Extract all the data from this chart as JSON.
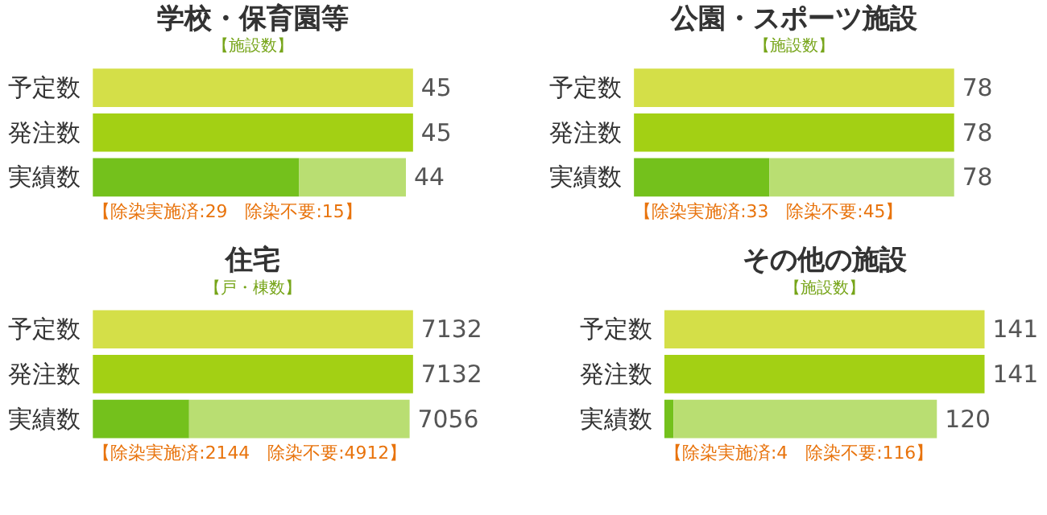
{
  "chart_data": [
    {
      "type": "bar",
      "orientation": "horizontal",
      "stacked": true,
      "title": "学校・保育園等",
      "subtitle": "【施設数】",
      "categories": [
        "予定数",
        "発注数",
        "実績数"
      ],
      "tick_labels": "y",
      "series": [
        {
          "colors": [
            "#d4df48",
            "#a3d014",
            "#74c11c"
          ],
          "values": [
            45,
            45,
            29
          ],
          "value_labels": [
            "45",
            "45",
            null
          ]
        },
        {
          "color": "#b9de72",
          "values": [
            null,
            null,
            15
          ]
        }
      ],
      "totals": [
        null,
        null,
        "44"
      ],
      "annotations": [
        "【除染実施済:29　除染不要:15】"
      ]
    },
    {
      "type": "bar",
      "orientation": "horizontal",
      "stacked": true,
      "title": "公園・スポーツ施設",
      "subtitle": "【施設数】",
      "categories": [
        "予定数",
        "発注数",
        "実績数"
      ],
      "tick_labels": "y",
      "series": [
        {
          "colors": [
            "#d4df48",
            "#a3d014",
            "#74c11c"
          ],
          "values": [
            78,
            78,
            33
          ],
          "value_labels": [
            "78",
            "78",
            null
          ]
        },
        {
          "color": "#b9de72",
          "values": [
            null,
            null,
            45
          ]
        }
      ],
      "totals": [
        null,
        null,
        "78"
      ],
      "annotations": [
        "【除染実施済:33　除染不要:45】"
      ]
    },
    {
      "type": "bar",
      "orientation": "horizontal",
      "stacked": true,
      "title": "住宅",
      "subtitle": "【戸・棟数】",
      "categories": [
        "予定数",
        "発注数",
        "実績数"
      ],
      "tick_labels": "y",
      "series": [
        {
          "colors": [
            "#d4df48",
            "#a3d014",
            "#74c11c"
          ],
          "values": [
            7132,
            7132,
            2144
          ],
          "value_labels": [
            "7132",
            "7132",
            null
          ]
        },
        {
          "color": "#b9de72",
          "values": [
            null,
            null,
            4912
          ]
        }
      ],
      "totals": [
        null,
        null,
        "7056"
      ],
      "annotations": [
        "【除染実施済:2144　除染不要:4912】"
      ]
    },
    {
      "type": "bar",
      "orientation": "horizontal",
      "stacked": true,
      "title": "その他の施設",
      "subtitle": "【施設数】",
      "categories": [
        "予定数",
        "発注数",
        "実績数"
      ],
      "tick_labels": "y",
      "series": [
        {
          "colors": [
            "#d4df48",
            "#a3d014",
            "#74c11c"
          ],
          "values": [
            141,
            141,
            4
          ],
          "value_labels": [
            "141",
            "141",
            null
          ]
        },
        {
          "color": "#b9de72",
          "values": [
            null,
            null,
            116
          ]
        }
      ],
      "totals": [
        null,
        null,
        "120"
      ],
      "annotations": [
        "【除染実施済:4　除染不要:116】"
      ]
    }
  ]
}
